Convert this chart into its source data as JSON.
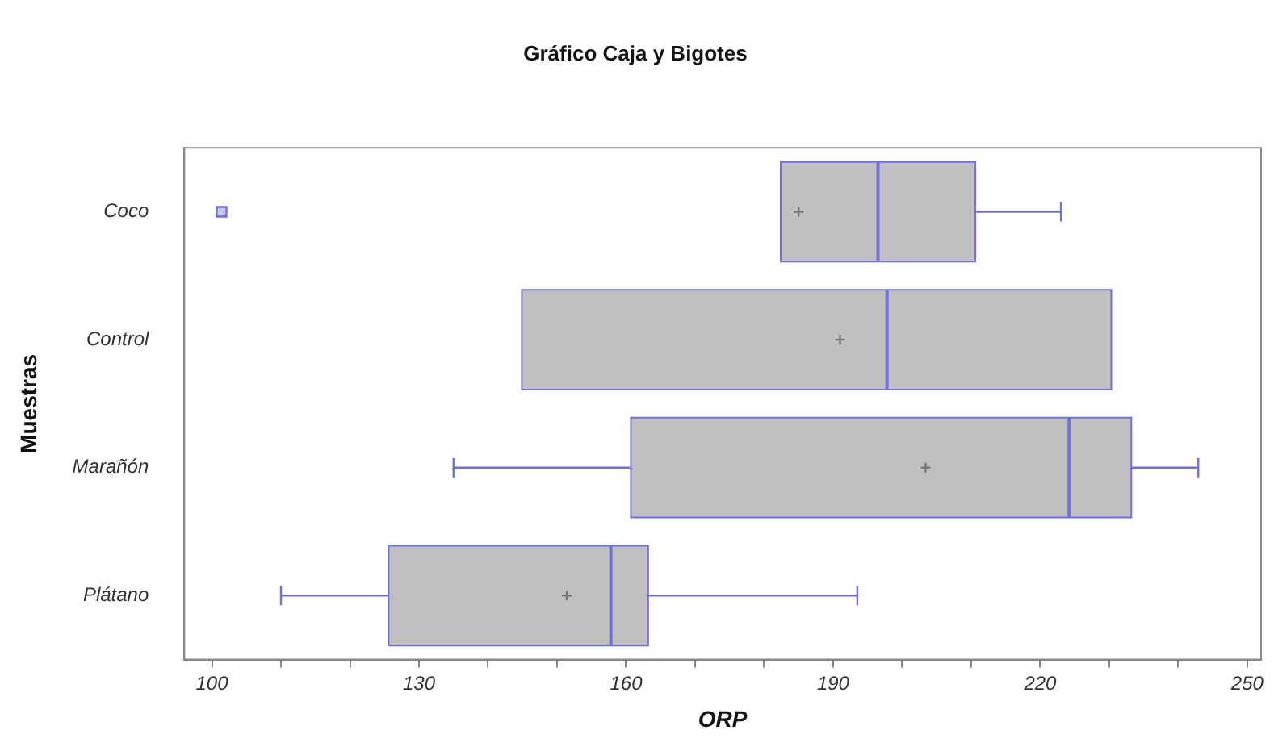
{
  "chart_data": {
    "type": "box",
    "title": "Gráfico Caja y Bigotes",
    "xlabel": "ORP",
    "ylabel": "Muestras",
    "orientation": "horizontal",
    "categories": [
      "Coco",
      "Control",
      "Marañón",
      "Plátano"
    ],
    "boxes": [
      {
        "low": 182.4,
        "q1": 182.4,
        "median": 196.5,
        "q3": 210.6,
        "high": 223,
        "mean": 185,
        "outliers": [
          101.4
        ]
      },
      {
        "low": 144.9,
        "q1": 144.9,
        "median": 197.8,
        "q3": 230.3,
        "high": 230.3,
        "mean": 191
      },
      {
        "low": 135,
        "q1": 160.7,
        "median": 224.2,
        "q3": 233.2,
        "high": 242.9,
        "mean": 203.4
      },
      {
        "low": 110,
        "q1": 125.6,
        "median": 157.8,
        "q3": 163.2,
        "high": 193.5,
        "mean": 151.4
      }
    ],
    "color": "#c0c0c0",
    "xlim": [
      96,
      252
    ],
    "xticks": [
      100,
      {
        "value": 110,
        "label": null
      },
      {
        "value": 120,
        "label": null
      },
      130,
      {
        "value": 140,
        "label": null
      },
      {
        "value": 150,
        "label": null
      },
      160,
      {
        "value": 170,
        "label": null
      },
      {
        "value": 180,
        "label": null
      },
      190,
      {
        "value": 200,
        "label": null
      },
      {
        "value": 210,
        "label": null
      },
      220,
      {
        "value": 230,
        "label": null
      },
      {
        "value": 240,
        "label": null
      },
      250
    ],
    "grid": false,
    "legend": false
  }
}
